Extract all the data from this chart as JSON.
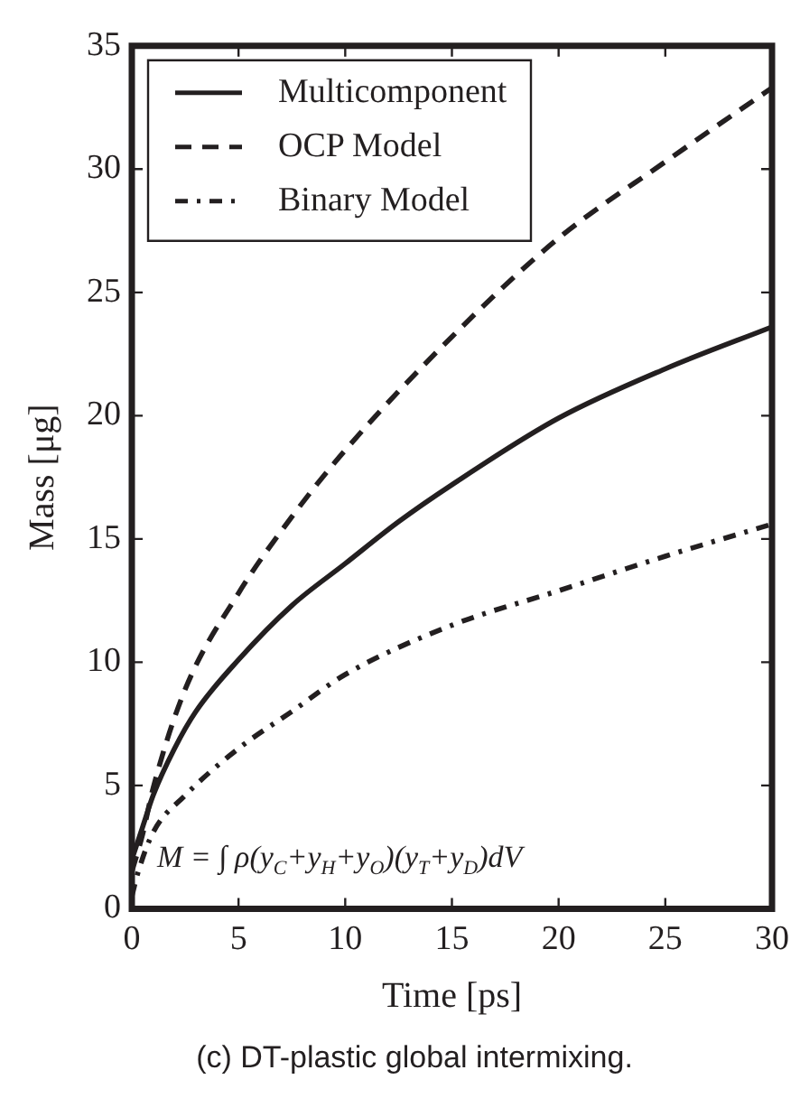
{
  "chart_data": {
    "type": "line",
    "xlabel": "Time [ps]",
    "ylabel": "Mass [μg]",
    "xlim": [
      0,
      30
    ],
    "ylim": [
      0,
      35
    ],
    "xticks": [
      0,
      5,
      10,
      15,
      20,
      25,
      30
    ],
    "yticks": [
      0,
      5,
      10,
      15,
      20,
      25,
      30,
      35
    ],
    "grid": false,
    "legend": "top left",
    "marker": "none",
    "series": [
      {
        "name": "Multicomponent",
        "color": "#231f20",
        "line_style": "solid",
        "x": [
          0,
          0.5,
          1,
          2,
          3,
          5,
          7.5,
          10,
          12.5,
          15,
          20,
          25,
          30
        ],
        "values": [
          2,
          3.3,
          4.6,
          6.5,
          8,
          10.1,
          12.3,
          14,
          15.7,
          17.2,
          19.9,
          21.9,
          23.6
        ]
      },
      {
        "name": "OCP Model",
        "color": "#231f20",
        "line_style": "dashed",
        "x": [
          0,
          0.5,
          1,
          2.5,
          5,
          7.5,
          10,
          15,
          20,
          25,
          30
        ],
        "values": [
          1.5,
          3,
          4.9,
          8.9,
          12.8,
          15.9,
          18.6,
          23.2,
          27.2,
          30.3,
          33.3
        ]
      },
      {
        "name": "Binary Model",
        "color": "#231f20",
        "line_style": "dashdot",
        "x": [
          0,
          0.3,
          1,
          2.5,
          5,
          7.5,
          10,
          15,
          20,
          25,
          30
        ],
        "values": [
          0.5,
          1.5,
          3.1,
          4.6,
          6.5,
          8,
          9.5,
          11.5,
          12.9,
          14.3,
          15.6
        ]
      }
    ],
    "annotations": [
      "M = ∫ ρ(y$_{C}$+y$_{H}$+y$_{O}$)(y$_{T}$+y$_{D}$)dV",
      "(c) DT-plastic global intermixing."
    ]
  }
}
